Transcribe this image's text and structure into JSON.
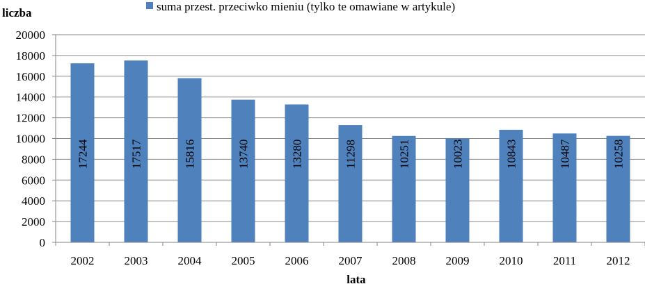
{
  "chart_data": {
    "type": "bar",
    "categories": [
      "2002",
      "2003",
      "2004",
      "2005",
      "2006",
      "2007",
      "2008",
      "2009",
      "2010",
      "2011",
      "2012"
    ],
    "series": [
      {
        "name": "suma przest. przeciwko mieniu (tylko te omawiane w artykule)",
        "values": [
          17244,
          17517,
          15816,
          13740,
          13280,
          11298,
          10251,
          10023,
          10843,
          10487,
          10258
        ],
        "color": "#4F81BD"
      }
    ],
    "ylabel": "liczba",
    "xlabel": "lata",
    "ylim": [
      0,
      20000
    ],
    "yticks": [
      "0",
      "2000",
      "4000",
      "6000",
      "8000",
      "10000",
      "12000",
      "14000",
      "16000",
      "18000",
      "20000"
    ],
    "grid": true,
    "legend": "top-center",
    "data_labels": true
  }
}
